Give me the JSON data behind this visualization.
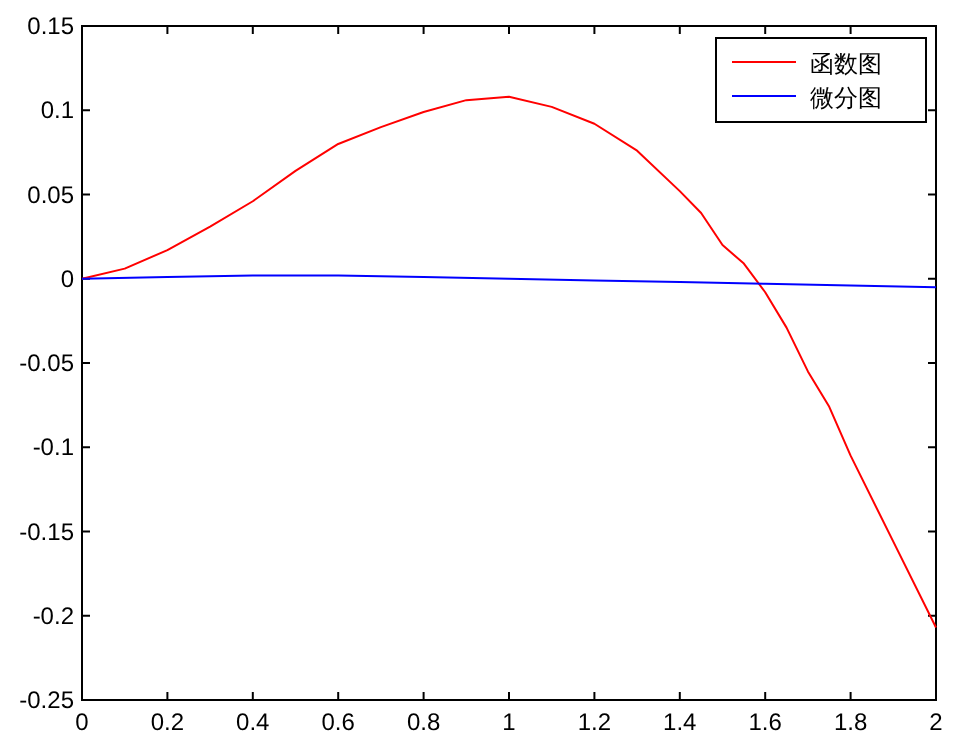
{
  "chart_data": {
    "type": "line",
    "xlim": [
      0,
      2
    ],
    "ylim": [
      -0.25,
      0.15
    ],
    "xticks": [
      0,
      0.2,
      0.4,
      0.6,
      0.8,
      1,
      1.2,
      1.4,
      1.6,
      1.8,
      2
    ],
    "yticks": [
      -0.25,
      -0.2,
      -0.15,
      -0.1,
      -0.05,
      0,
      0.05,
      0.1,
      0.15
    ],
    "legend": "top right",
    "grid": false,
    "marker": "none",
    "line_style": "solid",
    "series": [
      {
        "name": "函数图",
        "color": "#ff0000",
        "x": [
          0,
          0.1,
          0.2,
          0.3,
          0.4,
          0.5,
          0.6,
          0.7,
          0.8,
          0.9,
          1,
          1.1,
          1.2,
          1.3,
          1.4,
          1.45,
          1.5,
          1.55,
          1.6,
          1.65,
          1.7,
          1.75,
          1.8,
          1.9,
          2
        ],
        "values": [
          0,
          0.006,
          0.017,
          0.031,
          0.046,
          0.064,
          0.08,
          0.09,
          0.099,
          0.106,
          0.108,
          0.102,
          0.092,
          0.076,
          0.052,
          0.039,
          0.02,
          0.009,
          -0.008,
          -0.029,
          -0.055,
          -0.076,
          -0.105,
          -0.156,
          -0.207
        ]
      },
      {
        "name": "微分图",
        "color": "#0000ff",
        "x": [
          0,
          0.2,
          0.4,
          0.6,
          0.8,
          1,
          1.2,
          1.4,
          1.6,
          1.8,
          2
        ],
        "values": [
          0,
          0.001,
          0.002,
          0.002,
          0.001,
          0,
          -0.001,
          -0.002,
          -0.003,
          -0.004,
          -0.005
        ]
      }
    ]
  }
}
